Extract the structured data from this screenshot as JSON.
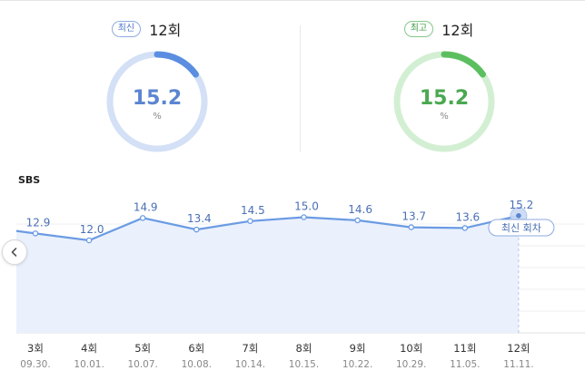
{
  "summary": {
    "latest": {
      "badge": "최신",
      "episode": "12회",
      "value": "15.2",
      "unit": "%",
      "fraction": 0.152,
      "color": "#5b8ee0",
      "track": "#d3e0f6"
    },
    "best": {
      "badge": "최고",
      "episode": "12회",
      "value": "15.2",
      "unit": "%",
      "fraction": 0.152,
      "color": "#5cbf5f",
      "track": "#d3efd3"
    }
  },
  "network": "SBS",
  "nav": {
    "prev_icon": "chevron-left-icon"
  },
  "chart_data": {
    "type": "area",
    "categories": [
      "3회",
      "4회",
      "5회",
      "6회",
      "7회",
      "8회",
      "9회",
      "10회",
      "11회",
      "12회"
    ],
    "dates": [
      "09.30.",
      "10.01.",
      "10.07.",
      "10.08.",
      "10.14.",
      "10.15.",
      "10.22.",
      "10.29.",
      "11.05.",
      "11.11."
    ],
    "values": [
      12.9,
      12.0,
      14.9,
      13.4,
      14.5,
      15.0,
      14.6,
      13.7,
      13.6,
      15.2
    ],
    "labels": [
      "12.9",
      "12.0",
      "14.9",
      "13.4",
      "14.5",
      "15.0",
      "14.6",
      "13.7",
      "13.6",
      "15.2"
    ],
    "ylim": [
      0,
      20
    ],
    "grid": true,
    "highlight_label": "최신 회차",
    "line_color": "#6b9be3",
    "fill_color": "#eaf1fd"
  }
}
